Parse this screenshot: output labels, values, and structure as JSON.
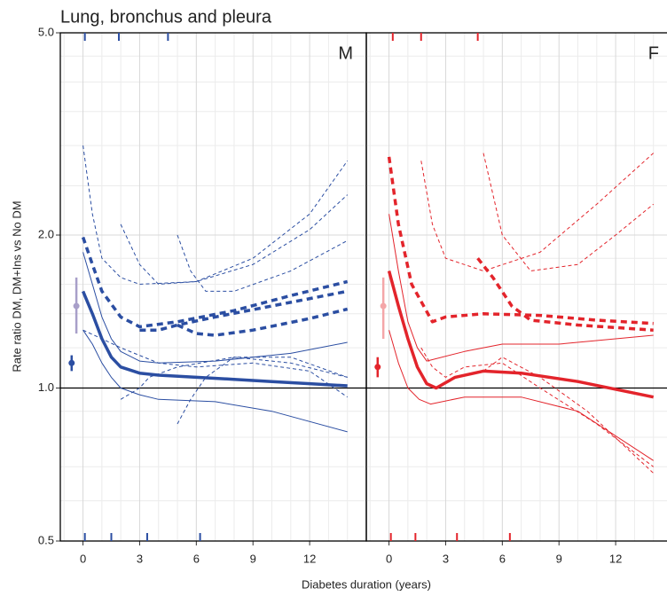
{
  "title": "Lung, bronchus and pleura",
  "ylabel": "Rate ratio DM, DM+Ins vs No DM",
  "xlabel": "Diabetes duration (years)",
  "chart_data": [
    {
      "type": "line",
      "panel_label": "M",
      "color": "#2b4ea2",
      "log_y": true,
      "grid": true,
      "xlim": [
        -1.2,
        15
      ],
      "ylim": [
        0.5,
        5
      ],
      "xticks": [
        0,
        3,
        6,
        9,
        12
      ],
      "yticks": [
        0.5,
        {
          "value": 1,
          "label": "1.0"
        },
        {
          "value": 2,
          "label": "2.0"
        },
        {
          "value": 5,
          "label": "5.0"
        }
      ],
      "x_minor_grid": [
        -1,
        1,
        2,
        4,
        5,
        7,
        8,
        10,
        11,
        13,
        14
      ],
      "y_minor_grid": [
        0.6,
        0.7,
        0.8,
        0.9,
        1.2,
        1.4,
        1.6,
        1.8,
        2.5,
        3,
        3.5,
        4,
        4.5
      ],
      "reference": 1,
      "rug_top": [
        0.1,
        1.9,
        4.5
      ],
      "rug_bottom": [
        0.1,
        1.5,
        3.4,
        6.2
      ],
      "series": [
        {
          "color": "#2b4ea2",
          "width": 3.5,
          "dash": "solid",
          "x": [
            0,
            0.5,
            1,
            1.5,
            2,
            3,
            4,
            6,
            8,
            10,
            12,
            14
          ],
          "values": [
            1.55,
            1.4,
            1.25,
            1.15,
            1.1,
            1.07,
            1.06,
            1.05,
            1.04,
            1.03,
            1.02,
            1.01
          ]
        },
        {
          "color": "#2b4ea2",
          "width": 1,
          "dash": "solid",
          "x": [
            0,
            0.5,
            1,
            1.5,
            2,
            3,
            4,
            7,
            11,
            14
          ],
          "values": [
            1.85,
            1.6,
            1.38,
            1.25,
            1.18,
            1.13,
            1.12,
            1.13,
            1.17,
            1.23
          ]
        },
        {
          "color": "#2b4ea2",
          "width": 1,
          "dash": "solid",
          "x": [
            0,
            0.5,
            1,
            1.5,
            2,
            3,
            4,
            7,
            10,
            14
          ],
          "values": [
            1.3,
            1.22,
            1.12,
            1.05,
            1.0,
            0.97,
            0.95,
            0.94,
            0.9,
            0.82
          ]
        },
        {
          "color": "#2b4ea2",
          "width": 3.5,
          "dash": "dashed",
          "x": [
            0,
            0.5,
            1,
            2,
            3,
            5,
            8,
            11,
            14
          ],
          "values": [
            1.98,
            1.75,
            1.55,
            1.38,
            1.32,
            1.35,
            1.42,
            1.52,
            1.62
          ]
        },
        {
          "color": "#2b4ea2",
          "width": 3.5,
          "dash": "dashed",
          "x": [
            3,
            4,
            5,
            7,
            10,
            14
          ],
          "values": [
            1.3,
            1.3,
            1.33,
            1.38,
            1.45,
            1.55
          ]
        },
        {
          "color": "#2b4ea2",
          "width": 3.5,
          "dash": "dashed",
          "x": [
            5,
            6,
            7,
            9,
            12,
            14
          ],
          "values": [
            1.33,
            1.28,
            1.27,
            1.3,
            1.37,
            1.43
          ]
        },
        {
          "color": "#2b4ea2",
          "width": 1,
          "dash": "dashed",
          "x": [
            0,
            0.5,
            1,
            2,
            3,
            6,
            9,
            12,
            14
          ],
          "values": [
            3.0,
            2.2,
            1.8,
            1.65,
            1.6,
            1.62,
            1.8,
            2.2,
            2.8
          ]
        },
        {
          "color": "#2b4ea2",
          "width": 1,
          "dash": "dashed",
          "x": [
            0,
            1,
            2,
            4,
            6,
            9,
            12,
            14
          ],
          "values": [
            1.3,
            1.25,
            1.2,
            1.12,
            1.1,
            1.12,
            1.08,
            0.96
          ]
        },
        {
          "color": "#2b4ea2",
          "width": 1,
          "dash": "dashed",
          "x": [
            2,
            3,
            4,
            6,
            9,
            12,
            14
          ],
          "values": [
            2.1,
            1.75,
            1.6,
            1.62,
            1.75,
            2.05,
            2.4
          ]
        },
        {
          "color": "#2b4ea2",
          "width": 1,
          "dash": "dashed",
          "x": [
            2,
            3,
            3.5,
            5,
            8,
            11,
            14
          ],
          "values": [
            0.95,
            1.0,
            1.05,
            1.1,
            1.15,
            1.12,
            1.05
          ]
        },
        {
          "color": "#2b4ea2",
          "width": 1,
          "dash": "dashed",
          "x": [
            5,
            5.7,
            6.5,
            8,
            11,
            14
          ],
          "values": [
            2.0,
            1.7,
            1.55,
            1.55,
            1.7,
            1.95
          ]
        },
        {
          "color": "#2b4ea2",
          "width": 1,
          "dash": "dashed",
          "x": [
            5,
            5.7,
            6.5,
            8,
            11,
            14
          ],
          "values": [
            0.85,
            0.95,
            1.05,
            1.15,
            1.15,
            1.05
          ]
        }
      ],
      "points": [
        {
          "color": "#2b4ea2",
          "x": -0.6,
          "value": 1.12,
          "lower": 1.08,
          "upper": 1.16
        },
        {
          "color": "#a89fc9",
          "x": -0.35,
          "value": 1.45,
          "lower": 1.28,
          "upper": 1.65
        }
      ]
    },
    {
      "type": "line",
      "panel_label": "F",
      "color": "#e3242b",
      "log_y": true,
      "grid": true,
      "xlim": [
        -1.2,
        15
      ],
      "ylim": [
        0.5,
        5
      ],
      "xticks": [
        0,
        3,
        6,
        9,
        12
      ],
      "yticks": [
        0.5,
        1,
        2,
        5
      ],
      "x_minor_grid": [
        -1,
        1,
        2,
        4,
        5,
        7,
        8,
        10,
        11,
        13,
        14
      ],
      "y_minor_grid": [
        0.6,
        0.7,
        0.8,
        0.9,
        1.2,
        1.4,
        1.6,
        1.8,
        2.5,
        3,
        3.5,
        4,
        4.5
      ],
      "reference": 1,
      "rug_top": [
        0.2,
        1.7,
        4.7
      ],
      "rug_bottom": [
        0.1,
        1.4,
        3.6,
        6.4
      ],
      "series": [
        {
          "color": "#e3242b",
          "width": 3.5,
          "dash": "solid",
          "x": [
            0,
            0.5,
            1,
            1.5,
            2,
            2.5,
            3.5,
            5,
            7,
            10,
            14
          ],
          "values": [
            1.7,
            1.45,
            1.25,
            1.1,
            1.02,
            1.0,
            1.05,
            1.08,
            1.07,
            1.03,
            0.96
          ]
        },
        {
          "color": "#e3242b",
          "width": 1,
          "dash": "solid",
          "x": [
            0,
            0.5,
            1,
            1.5,
            2,
            4,
            6,
            9,
            14
          ],
          "values": [
            2.2,
            1.7,
            1.35,
            1.2,
            1.13,
            1.18,
            1.22,
            1.22,
            1.27
          ]
        },
        {
          "color": "#e3242b",
          "width": 1,
          "dash": "solid",
          "x": [
            0,
            0.5,
            1,
            1.6,
            2.2,
            4,
            7,
            10,
            14
          ],
          "values": [
            1.3,
            1.12,
            1.0,
            0.95,
            0.93,
            0.96,
            0.96,
            0.9,
            0.72
          ]
        },
        {
          "color": "#e3242b",
          "width": 3.5,
          "dash": "dashed",
          "x": [
            0,
            0.5,
            1.2,
            2.3,
            3,
            5,
            8,
            11,
            14
          ],
          "values": [
            2.85,
            2.1,
            1.6,
            1.35,
            1.38,
            1.4,
            1.39,
            1.36,
            1.34
          ]
        },
        {
          "color": "#e3242b",
          "width": 3.5,
          "dash": "dashed",
          "x": [
            4.7,
            5.5,
            6.5,
            7.5,
            10,
            14
          ],
          "values": [
            1.8,
            1.65,
            1.45,
            1.36,
            1.33,
            1.3
          ]
        },
        {
          "color": "#e3242b",
          "width": 1,
          "dash": "dashed",
          "x": [
            1.7,
            2.3,
            3,
            5,
            8,
            11,
            14
          ],
          "values": [
            2.8,
            2.1,
            1.8,
            1.7,
            1.85,
            2.3,
            2.9
          ]
        },
        {
          "color": "#e3242b",
          "width": 1,
          "dash": "dashed",
          "x": [
            1.7,
            2.3,
            3,
            4,
            6,
            8,
            11,
            14
          ],
          "values": [
            1.2,
            1.1,
            1.05,
            1.1,
            1.12,
            1.0,
            0.85,
            0.7
          ]
        },
        {
          "color": "#e3242b",
          "width": 1,
          "dash": "dashed",
          "x": [
            5,
            6,
            7.5,
            10,
            12,
            14
          ],
          "values": [
            2.9,
            2.0,
            1.7,
            1.75,
            2.0,
            2.3
          ]
        },
        {
          "color": "#e3242b",
          "width": 1,
          "dash": "dashed",
          "x": [
            5,
            6,
            8,
            10.5,
            14
          ],
          "values": [
            1.08,
            1.15,
            1.05,
            0.9,
            0.68
          ]
        }
      ],
      "points": [
        {
          "color": "#e3242b",
          "x": -0.6,
          "value": 1.1,
          "lower": 1.05,
          "upper": 1.15
        },
        {
          "color": "#f4a6a8",
          "x": -0.3,
          "value": 1.45,
          "lower": 1.25,
          "upper": 1.65
        }
      ]
    }
  ]
}
